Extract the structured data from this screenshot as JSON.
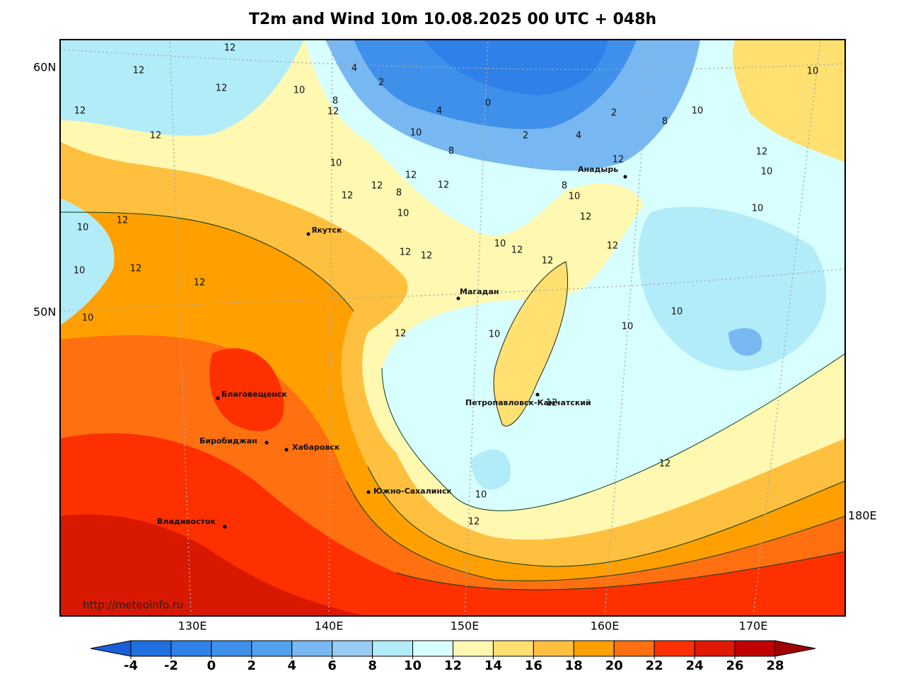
{
  "title": "T2m and Wind 10m 10.08.2025 00 UTC + 048h",
  "lat_labels": [
    "60N",
    "50N"
  ],
  "lon_labels": [
    "130E",
    "140E",
    "150E",
    "160E",
    "170E",
    "180E"
  ],
  "cities": [
    "Якутск",
    "Магадан",
    "Анадырь",
    "Благовещенск",
    "Биробиджан",
    "Хабаровск",
    "Петропавловск-Камчатский",
    "Южно-Сахалинск",
    "Владивосток"
  ],
  "contour_labels": [
    12,
    12,
    12,
    10,
    12,
    12,
    4,
    2,
    8,
    12,
    4,
    0,
    10,
    2,
    4,
    2,
    8,
    10,
    10,
    12,
    10,
    10,
    8,
    10,
    12,
    12,
    8,
    12,
    12,
    10,
    12,
    8,
    10,
    12,
    12,
    10,
    10,
    12,
    12,
    10,
    12,
    12,
    10,
    12,
    12,
    12,
    12,
    10,
    10,
    10,
    12,
    12,
    10,
    12
  ],
  "url": "http://meteoinfo.ru",
  "colorbar": {
    "ticks": [
      -4,
      -2,
      0,
      2,
      4,
      6,
      8,
      10,
      12,
      14,
      16,
      18,
      20,
      22,
      24,
      26,
      28
    ],
    "under_color": "#1a5fd6",
    "colors": [
      "#2070e0",
      "#2f80e8",
      "#3e90ea",
      "#52a0ee",
      "#78b8f2",
      "#98ccf4",
      "#b2ecf8",
      "#d8ffff",
      "#fff8b0",
      "#ffe070",
      "#ffc040",
      "#ffa000",
      "#ff7010",
      "#ff3000",
      "#e01800",
      "#c00000"
    ],
    "over_color": "#a00000"
  }
}
